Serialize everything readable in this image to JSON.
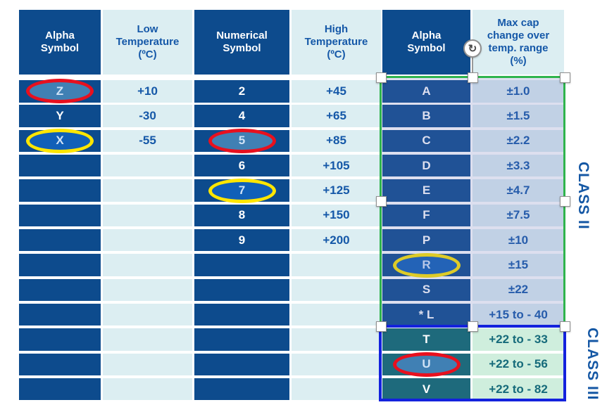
{
  "table": {
    "columns": [
      {
        "header": "Alpha\nSymbol",
        "style": "dark"
      },
      {
        "header": "Low\nTemperature\n(ºC)",
        "style": "light"
      },
      {
        "header": "Numerical\nSymbol",
        "style": "dark"
      },
      {
        "header": "High\nTemperature\n(ºC)",
        "style": "light"
      },
      {
        "header": "Alpha\nSymbol",
        "style": "dark"
      },
      {
        "header": "Max cap\nchange over\ntemp. range\n(%)",
        "style": "light"
      }
    ],
    "rows": [
      [
        "Z",
        "+10",
        "2",
        "+45",
        "A",
        "±1.0"
      ],
      [
        "Y",
        "-30",
        "4",
        "+65",
        "B",
        "±1.5"
      ],
      [
        "X",
        "-55",
        "5",
        "+85",
        "C",
        "±2.2"
      ],
      [
        "",
        "",
        "6",
        "+105",
        "D",
        "±3.3"
      ],
      [
        "",
        "",
        "7",
        "+125",
        "E",
        "±4.7"
      ],
      [
        "",
        "",
        "8",
        "+150",
        "F",
        "±7.5"
      ],
      [
        "",
        "",
        "9",
        "+200",
        "P",
        "±10"
      ],
      [
        "",
        "",
        "",
        "",
        "R",
        "±15"
      ],
      [
        "",
        "",
        "",
        "",
        "S",
        "±22"
      ],
      [
        "",
        "",
        "",
        "",
        "* L",
        "+15 to - 40"
      ],
      [
        "",
        "",
        "",
        "",
        "T",
        "+22 to - 33"
      ],
      [
        "",
        "",
        "",
        "",
        "U",
        "+22 to - 56"
      ],
      [
        "",
        "",
        "",
        "",
        "V",
        "+22 to - 82"
      ]
    ],
    "highlights": [
      {
        "row": 0,
        "col": 0,
        "ring": "red"
      },
      {
        "row": 2,
        "col": 0,
        "ring": "yellow"
      },
      {
        "row": 2,
        "col": 2,
        "ring": "red"
      },
      {
        "row": 4,
        "col": 2,
        "ring": "yellow"
      },
      {
        "row": 7,
        "col": 4,
        "ring": "yellow"
      },
      {
        "row": 11,
        "col": 4,
        "ring": "red"
      }
    ]
  },
  "annotations": {
    "class2_label": "CLASS II",
    "class3_label": "CLASS III",
    "rotate_glyph": "↻"
  },
  "colors": {
    "dark_cell": "#0d4b8d",
    "light_cell": "#dceef2",
    "teal_cell": "#1e6a7c",
    "mint_cell": "#cfeedd",
    "selection_green": "#2fb44d",
    "selection_tint": "rgba(100,110,180,0.22)",
    "class3_blue": "#1322dd",
    "highlight_red": "#e8101e",
    "highlight_yellow": "#ffe600",
    "fill_red_ring": "#4080b4",
    "fill_yellow_ring": "#1160b8"
  }
}
